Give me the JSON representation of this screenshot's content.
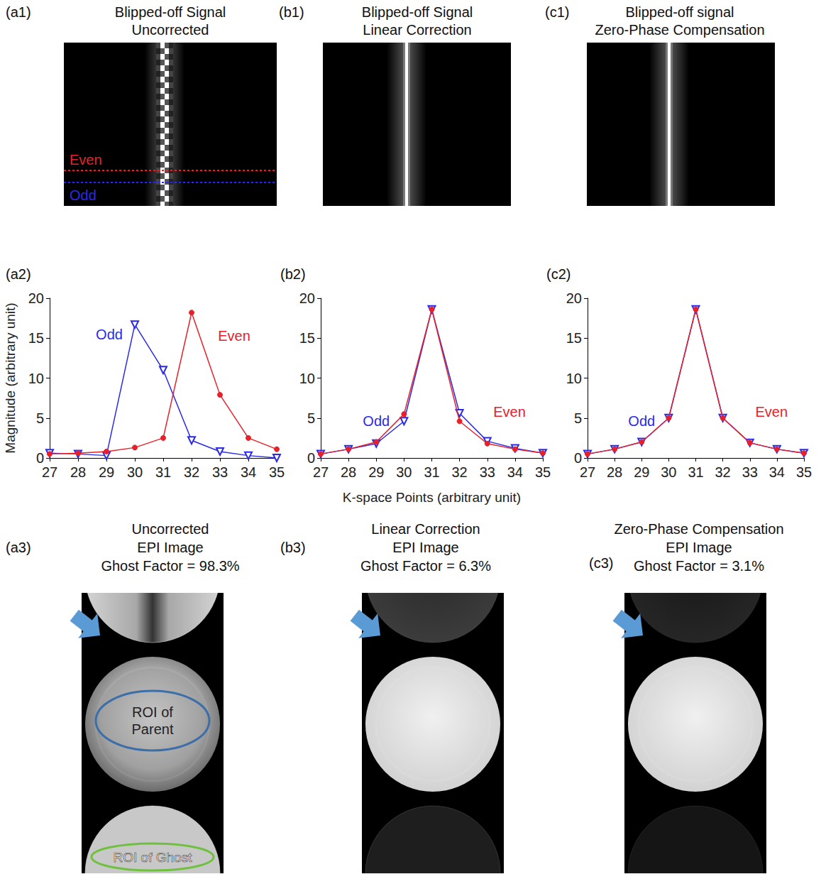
{
  "panels": [
    {
      "label": "(a1)",
      "title": [
        "Blipped-off Signal",
        "Uncorrected"
      ],
      "annotations": [
        {
          "text": "Even",
          "color": "#e8202a"
        },
        {
          "text": "Odd",
          "color": "#2a2ae8"
        }
      ]
    },
    {
      "label": "(b1)",
      "title": [
        "Blipped-off Signal",
        "Linear Correction"
      ]
    },
    {
      "label": "(c1)",
      "title": [
        "Blipped-off signal",
        "Zero-Phase Compensation"
      ]
    }
  ],
  "chart_data": [
    {
      "type": "line",
      "label": "(a2)",
      "ylabel": "Magnitude (arbitrary unit)",
      "x": [
        27,
        28,
        29,
        30,
        31,
        32,
        33,
        34,
        35
      ],
      "series": [
        {
          "name": "Odd",
          "color": "#2a2ae8",
          "marker": "triangle-down",
          "values": [
            0.6,
            0.5,
            0.3,
            16.7,
            11.0,
            2.2,
            0.8,
            0.3,
            0.0
          ]
        },
        {
          "name": "Even",
          "color": "#e8202a",
          "marker": "circle",
          "values": [
            0.5,
            0.6,
            0.8,
            1.3,
            2.5,
            18.2,
            7.9,
            2.5,
            1.1
          ]
        }
      ],
      "xlim": [
        27,
        35
      ],
      "xticks": [
        27,
        28,
        29,
        30,
        31,
        32,
        33,
        34,
        35
      ],
      "ylim": [
        0,
        20
      ],
      "yticks": [
        0,
        5,
        10,
        15,
        20
      ],
      "grid": false
    },
    {
      "type": "line",
      "label": "(b2)",
      "xlabel": "K-space Points (arbitrary unit)",
      "x": [
        27,
        28,
        29,
        30,
        31,
        32,
        33,
        34,
        35
      ],
      "series": [
        {
          "name": "Odd",
          "color": "#2a2ae8",
          "marker": "triangle-down",
          "values": [
            0.5,
            1.1,
            1.8,
            4.6,
            18.6,
            5.6,
            2.1,
            1.2,
            0.6
          ]
        },
        {
          "name": "Even",
          "color": "#e8202a",
          "marker": "circle",
          "values": [
            0.5,
            1.1,
            2.0,
            5.5,
            18.6,
            4.6,
            1.8,
            1.1,
            0.6
          ]
        }
      ],
      "xlim": [
        27,
        35
      ],
      "xticks": [
        27,
        28,
        29,
        30,
        31,
        32,
        33,
        34,
        35
      ],
      "ylim": [
        0,
        20
      ],
      "yticks": [
        0,
        5,
        10,
        15,
        20
      ],
      "grid": false
    },
    {
      "type": "line",
      "label": "(c2)",
      "x": [
        27,
        28,
        29,
        30,
        31,
        32,
        33,
        34,
        35
      ],
      "series": [
        {
          "name": "Odd",
          "color": "#2a2ae8",
          "marker": "triangle-down",
          "values": [
            0.5,
            1.1,
            2.0,
            5.0,
            18.6,
            5.0,
            1.9,
            1.1,
            0.6
          ]
        },
        {
          "name": "Even",
          "color": "#e8202a",
          "marker": "circle",
          "values": [
            0.5,
            1.1,
            2.0,
            5.0,
            18.6,
            5.0,
            1.9,
            1.1,
            0.6
          ]
        }
      ],
      "xlim": [
        27,
        35
      ],
      "xticks": [
        27,
        28,
        29,
        30,
        31,
        32,
        33,
        34,
        35
      ],
      "ylim": [
        0,
        20
      ],
      "yticks": [
        0,
        5,
        10,
        15,
        20
      ],
      "grid": false
    }
  ],
  "images": [
    {
      "label": "(a3)",
      "title": [
        "Uncorrected",
        "EPI Image",
        "Ghost Factor = 98.3%"
      ],
      "rois": [
        {
          "text": "ROI of Parent",
          "color": "#3c6ea8"
        },
        {
          "text": "ROI of Ghost",
          "color": "#70c040"
        }
      ]
    },
    {
      "label": "(b3)",
      "title": [
        "Linear Correction",
        "EPI Image",
        "Ghost Factor = 6.3%"
      ]
    },
    {
      "label": "(c3)",
      "title": [
        "Zero-Phase Compensation",
        "EPI Image",
        "Ghost Factor = 3.1%"
      ]
    }
  ]
}
